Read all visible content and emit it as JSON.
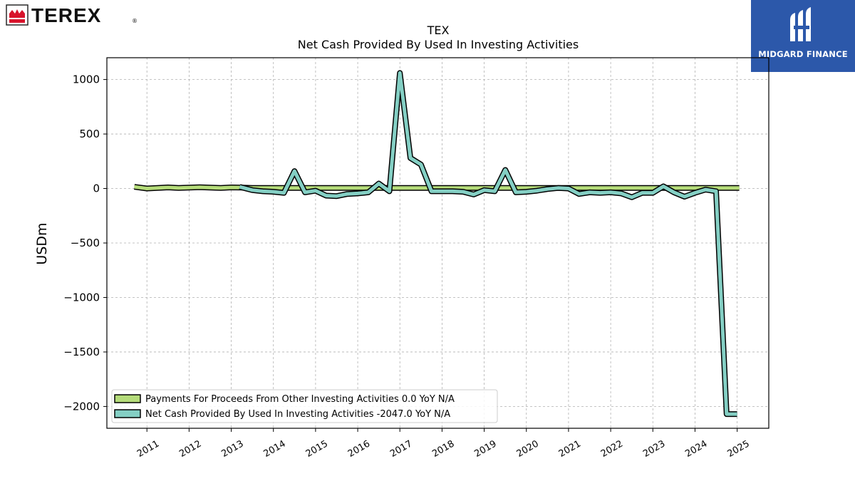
{
  "brand": {
    "left_logo_text": "TEREX",
    "left_logo_mark": "®",
    "right_logo_text": "MIDGARD FINANCE",
    "right_logo_bg": "#2c58aa"
  },
  "chart_data": {
    "type": "line",
    "title": "TEX",
    "subtitle": "Net Cash Provided By Used In Investing Activities",
    "xlabel": "",
    "ylabel": "USDm",
    "ylim": [
      -2200,
      1200
    ],
    "xlim": [
      2010.05,
      2025.75
    ],
    "yticks": [
      1000,
      500,
      0,
      -500,
      -1000,
      -1500,
      -2000
    ],
    "ytick_labels": [
      "1000",
      "500",
      "0",
      "−500",
      "−1000",
      "−1500",
      "−2000"
    ],
    "xticks": [
      2011,
      2012,
      2013,
      2014,
      2015,
      2016,
      2017,
      2018,
      2019,
      2020,
      2021,
      2022,
      2023,
      2024,
      2025
    ],
    "xtick_labels": [
      "2011",
      "2012",
      "2013",
      "2014",
      "2015",
      "2016",
      "2017",
      "2018",
      "2019",
      "2020",
      "2021",
      "2022",
      "2023",
      "2024",
      "2025"
    ],
    "grid": true,
    "legend_position": "lower-left",
    "series": [
      {
        "name": "Payments For Proceeds From Other Investing Activities",
        "legend": "Payments For Proceeds From Other Investing Activities  0.0 YoY N/A",
        "color": "#b5dc7a",
        "x": [
          2010.7,
          2011.0,
          2011.5,
          2011.75,
          2012.0,
          2012.25,
          2012.5,
          2012.75,
          2013.0,
          2013.25,
          2013.5,
          2014.0,
          2014.5,
          2015.0,
          2015.5,
          2016.0,
          2016.5,
          2017.0,
          2017.5,
          2018.0,
          2018.5,
          2019.0,
          2019.5,
          2020.0,
          2020.5,
          2021.0,
          2021.5,
          2022.0,
          2022.5,
          2023.0,
          2023.5,
          2024.0,
          2024.5,
          2025.05
        ],
        "values": [
          15,
          0,
          10,
          5,
          8,
          12,
          8,
          5,
          10,
          8,
          5,
          5,
          5,
          5,
          5,
          5,
          5,
          5,
          5,
          5,
          5,
          5,
          5,
          5,
          5,
          5,
          5,
          5,
          5,
          5,
          5,
          5,
          5,
          5
        ]
      },
      {
        "name": "Net Cash Provided By Used In Investing Activities",
        "legend": "Net Cash Provided By Used In Investing Activities  -2047.0 YoY N/A",
        "color": "#84cfc4",
        "x": [
          2013.2,
          2013.5,
          2013.75,
          2014.0,
          2014.25,
          2014.5,
          2014.75,
          2015.0,
          2015.25,
          2015.5,
          2015.75,
          2016.0,
          2016.25,
          2016.5,
          2016.75,
          2017.0,
          2017.25,
          2017.5,
          2017.75,
          2018.0,
          2018.25,
          2018.5,
          2018.75,
          2019.0,
          2019.25,
          2019.5,
          2019.75,
          2020.0,
          2020.25,
          2020.5,
          2020.75,
          2021.0,
          2021.25,
          2021.5,
          2021.75,
          2022.0,
          2022.25,
          2022.5,
          2022.75,
          2023.0,
          2023.25,
          2023.5,
          2023.75,
          2024.0,
          2024.25,
          2024.5,
          2024.75,
          2025.0
        ],
        "values": [
          15,
          -15,
          -25,
          -30,
          -40,
          160,
          -35,
          -20,
          -65,
          -70,
          -50,
          -45,
          -35,
          45,
          -25,
          1060,
          280,
          220,
          -25,
          -25,
          -25,
          -30,
          -55,
          -15,
          -25,
          170,
          -35,
          -30,
          -20,
          -5,
          5,
          0,
          -50,
          -35,
          -40,
          -35,
          -45,
          -80,
          -40,
          -40,
          20,
          -35,
          -75,
          -40,
          -10,
          -25,
          -2070,
          -2070
        ]
      }
    ]
  }
}
